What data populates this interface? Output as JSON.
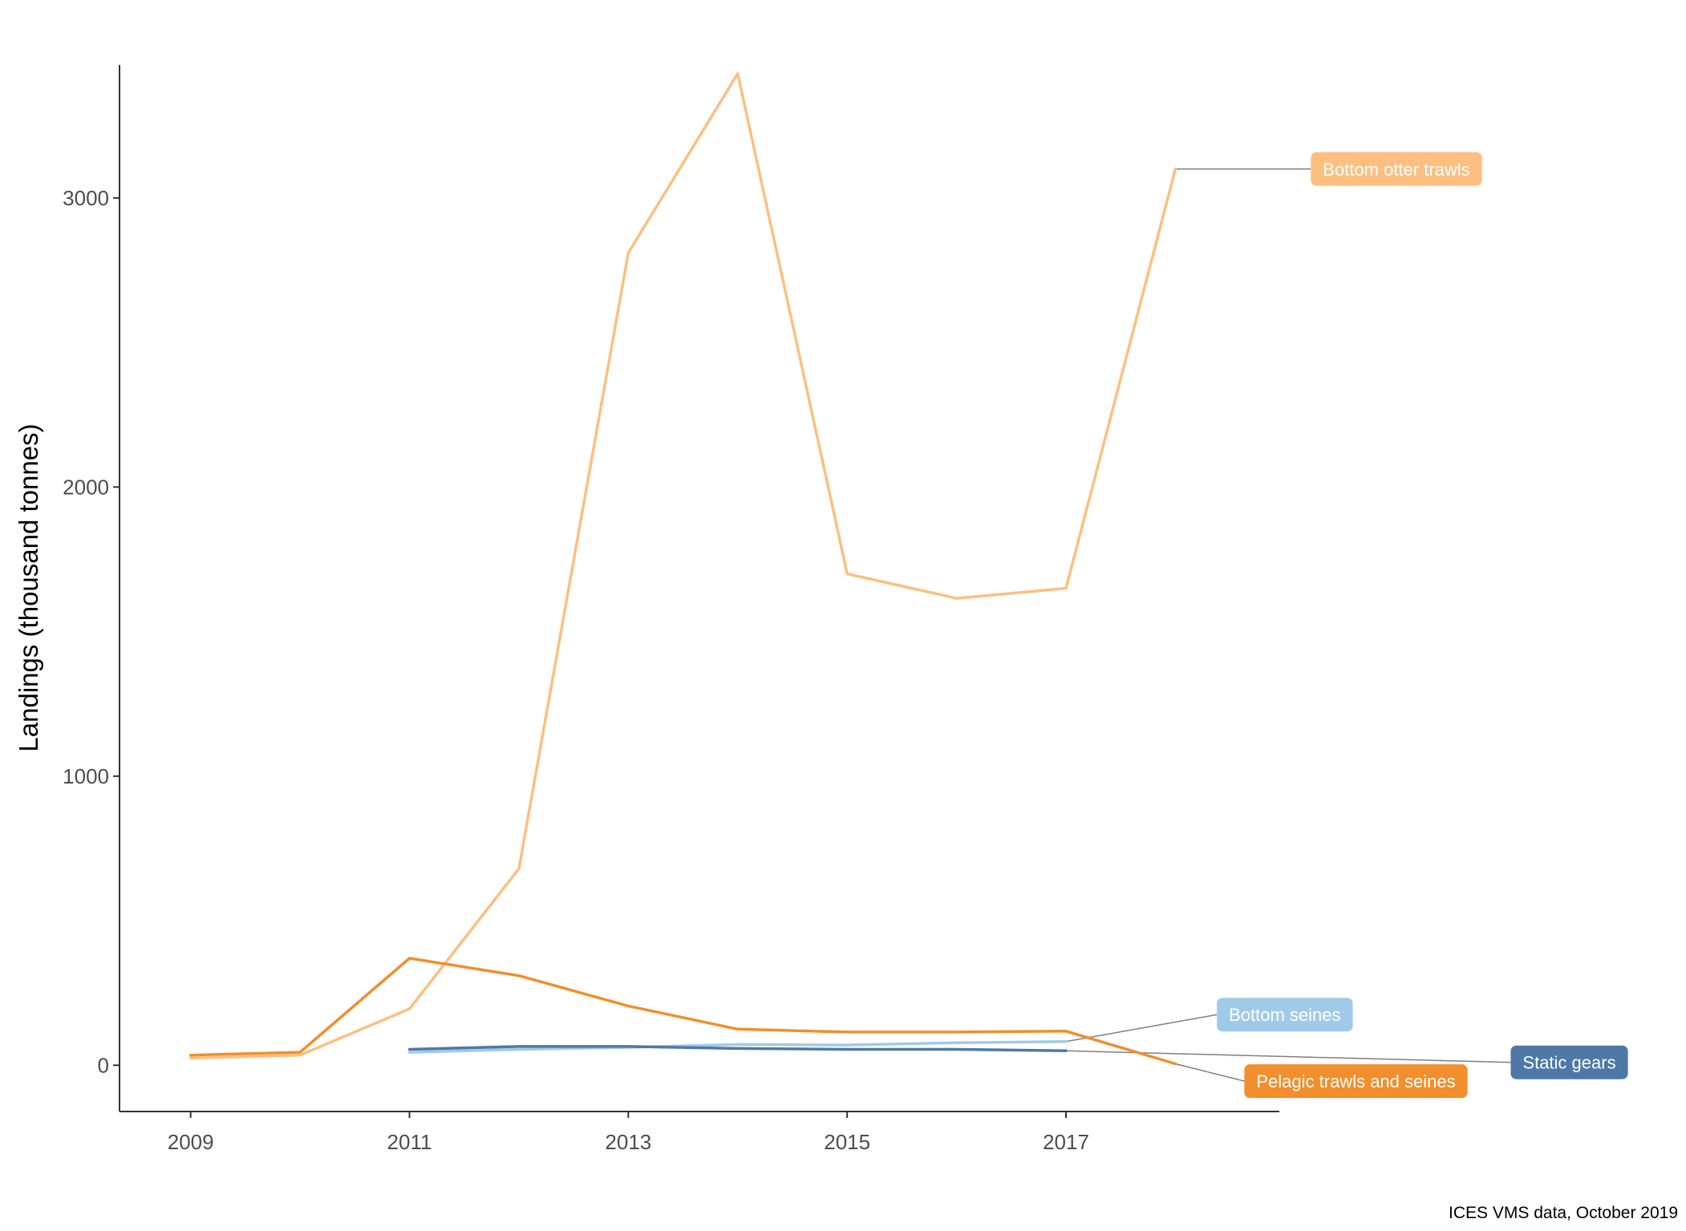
{
  "chart_data": {
    "type": "line",
    "title": "",
    "xlabel": "",
    "ylabel": "Landings (thousand tonnes)",
    "caption": "ICES VMS data, October 2019",
    "x_ticks": [
      2009,
      2011,
      2013,
      2015,
      2017
    ],
    "y_ticks": [
      0,
      1000,
      2000,
      3000
    ],
    "xlim": [
      2008.35,
      2018.95
    ],
    "ylim": [
      -160,
      3460
    ],
    "grid": false,
    "legend": "direct-labels-right",
    "series": [
      {
        "name": "Bottom otter trawls",
        "color": "#FDBF80",
        "x": [
          2009,
          2010,
          2011,
          2012,
          2013,
          2014,
          2015,
          2016,
          2017,
          2018
        ],
        "y": [
          25,
          35,
          195,
          680,
          2810,
          3430,
          1700,
          1615,
          1650,
          3100
        ]
      },
      {
        "name": "Pelagic trawls and seines",
        "color": "#F28E2B",
        "x": [
          2009,
          2010,
          2011,
          2012,
          2013,
          2014,
          2015,
          2016,
          2017,
          2018
        ],
        "y": [
          35,
          45,
          370,
          310,
          205,
          125,
          115,
          115,
          118,
          5
        ]
      },
      {
        "name": "Bottom seines",
        "color": "#A0CBE8",
        "x": [
          2011,
          2012,
          2013,
          2014,
          2015,
          2016,
          2017
        ],
        "y": [
          45,
          55,
          62,
          72,
          70,
          78,
          82
        ]
      },
      {
        "name": "Static gears",
        "color": "#4E79A7",
        "x": [
          2011,
          2012,
          2013,
          2014,
          2015,
          2016,
          2017
        ],
        "y": [
          55,
          65,
          65,
          58,
          55,
          55,
          50
        ]
      }
    ],
    "direct_labels": [
      {
        "text": "Bottom otter trawls",
        "series": "Bottom otter trawls",
        "anchor_x": 2018,
        "anchor_y": 3100,
        "label_x": 2020.02,
        "label_y": 3100
      },
      {
        "text": "Bottom seines",
        "series": "Bottom seines",
        "anchor_x": 2017,
        "anchor_y": 82,
        "label_x": 2019.0,
        "label_y": 175
      },
      {
        "text": "Static gears",
        "series": "Static gears",
        "anchor_x": 2017,
        "anchor_y": 50,
        "label_x": 2021.6,
        "label_y": 10
      },
      {
        "text": "Pelagic trawls and seines",
        "series": "Pelagic trawls and seines",
        "anchor_x": 2018,
        "anchor_y": 5,
        "label_x": 2019.65,
        "label_y": -55
      }
    ]
  }
}
